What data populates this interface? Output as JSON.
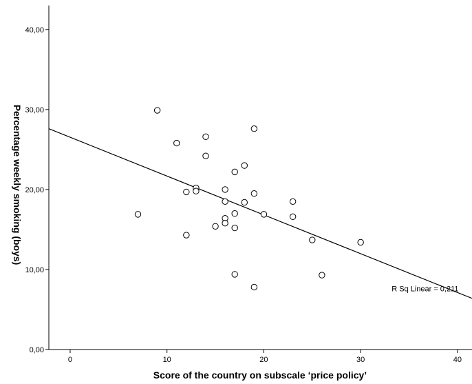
{
  "chart_data": {
    "type": "scatter",
    "xlabel": "Score of the country  on subscale ‘price policy’",
    "ylabel": "Percentage weekly smoking (boys)",
    "xlim": [
      -2.2,
      41.5
    ],
    "ylim": [
      0,
      43
    ],
    "x_ticks": [
      0,
      10,
      20,
      30,
      40
    ],
    "x_tick_labels": [
      "0",
      "10",
      "20",
      "30",
      "40"
    ],
    "y_ticks": [
      0,
      10,
      20,
      30,
      40
    ],
    "y_tick_labels": [
      "0,00",
      "10,00",
      "20,00",
      "30,00",
      "40,00"
    ],
    "grid": false,
    "legend": "none",
    "points": [
      {
        "x": 9,
        "y": 29.9
      },
      {
        "x": 19,
        "y": 27.6
      },
      {
        "x": 14,
        "y": 26.6
      },
      {
        "x": 11,
        "y": 25.8
      },
      {
        "x": 14,
        "y": 24.2
      },
      {
        "x": 18,
        "y": 23.0
      },
      {
        "x": 17,
        "y": 22.2
      },
      {
        "x": 13,
        "y": 20.2
      },
      {
        "x": 16,
        "y": 20.0
      },
      {
        "x": 13,
        "y": 19.8
      },
      {
        "x": 12,
        "y": 19.7
      },
      {
        "x": 19,
        "y": 19.5
      },
      {
        "x": 16,
        "y": 18.5
      },
      {
        "x": 23,
        "y": 18.5
      },
      {
        "x": 18,
        "y": 18.4
      },
      {
        "x": 17,
        "y": 17.0
      },
      {
        "x": 20,
        "y": 16.9
      },
      {
        "x": 7,
        "y": 16.9
      },
      {
        "x": 23,
        "y": 16.6
      },
      {
        "x": 16,
        "y": 16.4
      },
      {
        "x": 16,
        "y": 15.8
      },
      {
        "x": 15,
        "y": 15.4
      },
      {
        "x": 17,
        "y": 15.2
      },
      {
        "x": 12,
        "y": 14.3
      },
      {
        "x": 25,
        "y": 13.7
      },
      {
        "x": 30,
        "y": 13.4
      },
      {
        "x": 17,
        "y": 9.4
      },
      {
        "x": 26,
        "y": 9.3
      },
      {
        "x": 19,
        "y": 7.8
      }
    ],
    "fit_line": {
      "type": "linear",
      "x": [
        -2.2,
        41.5
      ],
      "y": [
        27.6,
        6.4
      ]
    },
    "annotation": "R Sq Linear = 0,211",
    "annotation_position": {
      "x": 33.2,
      "y": 7.3
    },
    "colors": {
      "marker_stroke": "#000000",
      "marker_fill": "#ffffff",
      "line": "#000000",
      "axis": "#000000"
    }
  }
}
